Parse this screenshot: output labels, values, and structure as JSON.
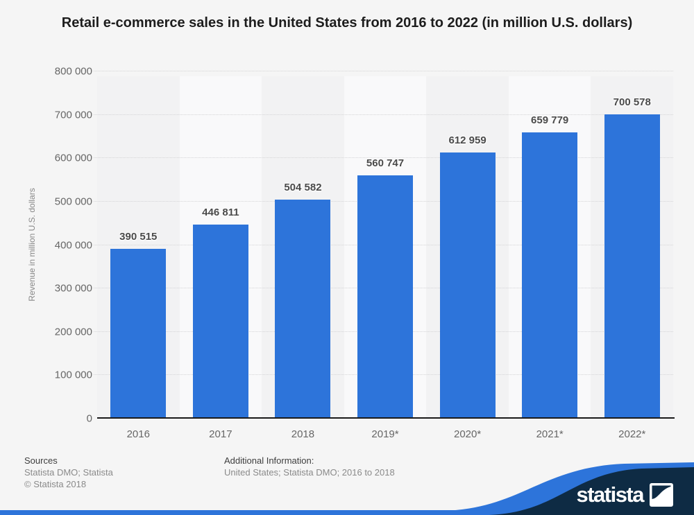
{
  "chart_data": {
    "type": "bar",
    "title": "Retail e-commerce sales in the United States from 2016 to 2022 (in million U.S. dollars)",
    "categories": [
      "2016",
      "2017",
      "2018",
      "2019*",
      "2020*",
      "2021*",
      "2022*"
    ],
    "values": [
      390515,
      446811,
      504582,
      560747,
      612959,
      659779,
      700578
    ],
    "value_labels": [
      "390 515",
      "446 811",
      "504 582",
      "560 747",
      "612 959",
      "659 779",
      "700 578"
    ],
    "xlabel": "",
    "ylabel": "Revenue in million U.S. dollars",
    "ylim": [
      0,
      800000
    ],
    "ytick_step": 100000,
    "ytick_labels": [
      "0",
      "100 000",
      "200 000",
      "300 000",
      "400 000",
      "500 000",
      "600 000",
      "700 000",
      "800 000"
    ],
    "grid": true,
    "gridline_style": "dotted",
    "legend": false,
    "bar_color": "#2d74da",
    "band_colors": [
      "#f2f2f3",
      "#f9f9fa"
    ]
  },
  "footer": {
    "sources_heading": "Sources",
    "sources_line": "Statista DMO; Statista",
    "copyright": "© Statista 2018",
    "additional_heading": "Additional Information:",
    "additional_line": "United States; Statista DMO; 2016 to 2018"
  },
  "branding": {
    "logo_text": "statista",
    "navy_color": "#0e2b44",
    "blue_color": "#2d74da"
  }
}
